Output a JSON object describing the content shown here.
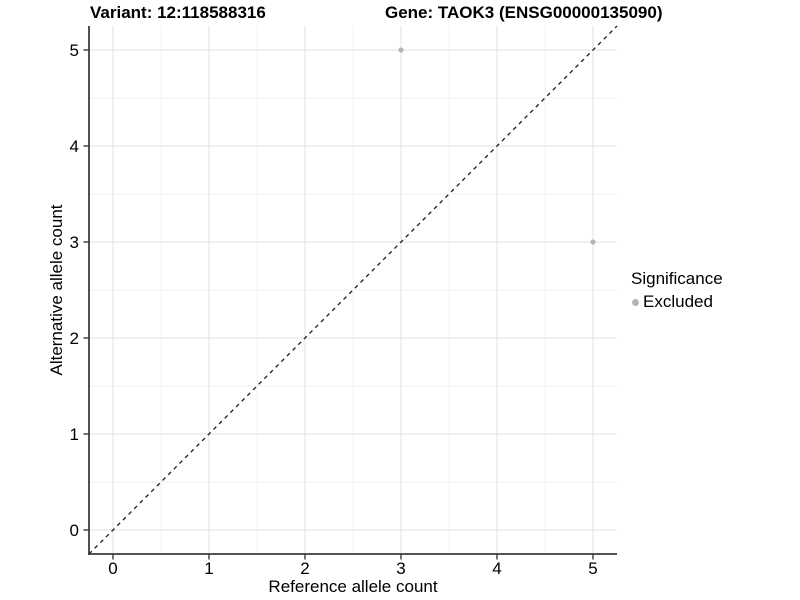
{
  "colors": {
    "background": "#ffffff",
    "grid_major": "#e2e2e2",
    "grid_minor": "#f1f1f1",
    "axis_line": "#3c3c3c",
    "tick_text": "#000000",
    "point": "#b4b4b4",
    "reference_line": "#1a1a1a"
  },
  "chart_data": {
    "type": "scatter",
    "title": "Variant: 12:118588316",
    "subtitle": "Gene: TAOK3 (ENSG00000135090)",
    "xlabel": "Reference allele count",
    "ylabel": "Alternative allele count",
    "xlim": [
      -0.25,
      5.25
    ],
    "ylim": [
      -0.25,
      5.25
    ],
    "x_ticks": [
      0,
      1,
      2,
      3,
      4,
      5
    ],
    "y_ticks": [
      0,
      1,
      2,
      3,
      4,
      5
    ],
    "x_minor_ticks": [
      0.5,
      1.5,
      2.5,
      3.5,
      4.5
    ],
    "y_minor_ticks": [
      0.5,
      1.5,
      2.5,
      3.5,
      4.5
    ],
    "grid": true,
    "series": [
      {
        "name": "Excluded",
        "color": "#b4b4b4",
        "points": [
          {
            "x": 3,
            "y": 5
          },
          {
            "x": 5,
            "y": 3
          }
        ]
      }
    ],
    "reference_line": {
      "kind": "identity",
      "style": "dashed",
      "color": "#1a1a1a"
    },
    "legend": {
      "title": "Significance",
      "position": "right",
      "items": [
        {
          "label": "Excluded",
          "color": "#b4b4b4"
        }
      ]
    }
  }
}
